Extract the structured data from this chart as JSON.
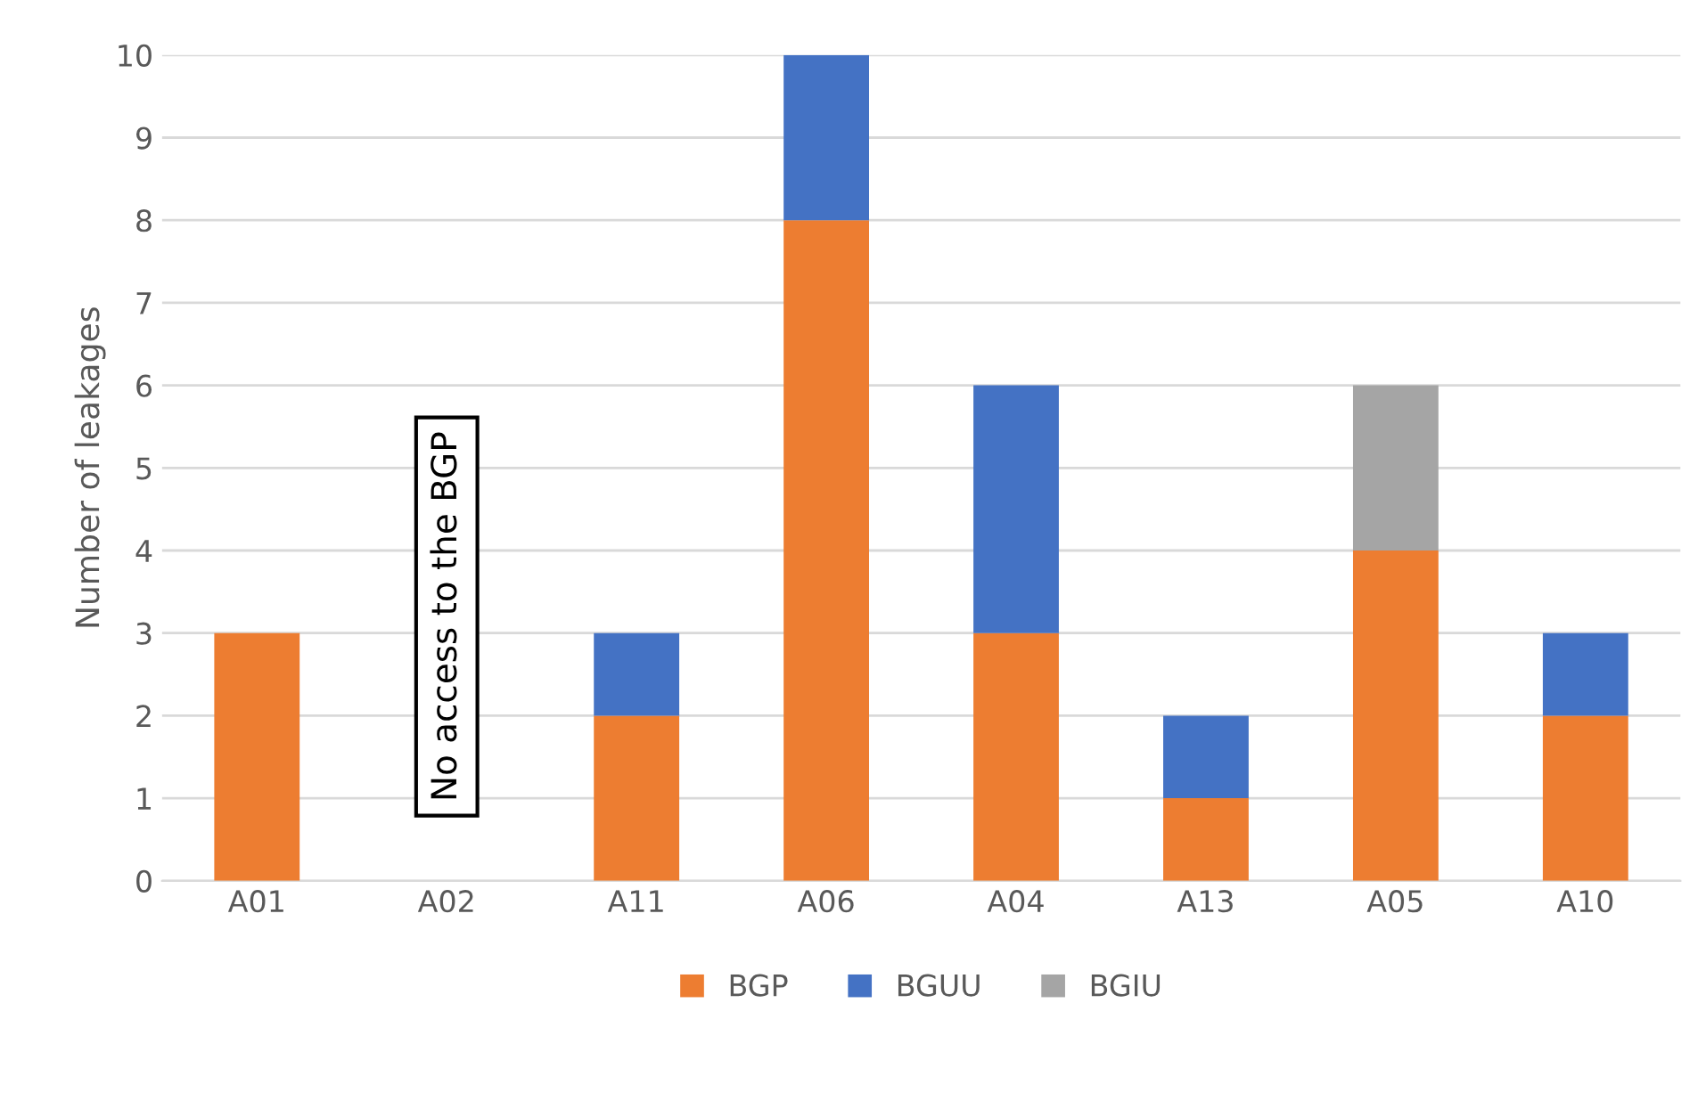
{
  "chart_data": {
    "type": "bar",
    "stacked": true,
    "ylabel": "Number of leakages",
    "categories": [
      "A01",
      "A02",
      "A11",
      "A06",
      "A04",
      "A13",
      "A05",
      "A10"
    ],
    "series": [
      {
        "name": "BGP",
        "color": "#ed7d31",
        "values": [
          3,
          null,
          2,
          8,
          3,
          1,
          4,
          2
        ]
      },
      {
        "name": "BGUU",
        "color": "#4472c4",
        "values": [
          null,
          null,
          1,
          2,
          3,
          1,
          null,
          1
        ]
      },
      {
        "name": "BGIU",
        "color": "#a5a5a5",
        "values": [
          null,
          null,
          null,
          null,
          null,
          null,
          2,
          null
        ]
      }
    ],
    "annotations": [
      "No access to the BGP"
    ],
    "ylim": [
      0,
      10
    ],
    "yticks": [
      0,
      1,
      2,
      3,
      4,
      5,
      6,
      7,
      8,
      9,
      10
    ],
    "grid": "y",
    "legend": "bottom"
  }
}
